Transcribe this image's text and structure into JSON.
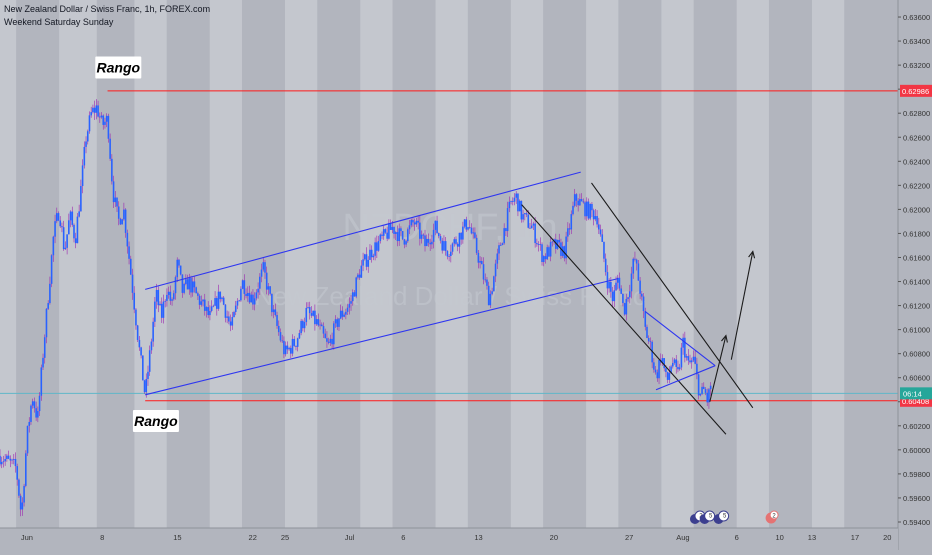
{
  "header": {
    "title": "New Zealand Dollar / Swiss Franc, 1h, FOREX.com",
    "subtitle": "Weekend Saturday Sunday"
  },
  "watermark": {
    "symbol": "NZDCHF, 1h",
    "name": "New Zealand Dollar / Swiss Franc"
  },
  "colors": {
    "background": "#b2b5be",
    "weekend_band": "#c4c7ce",
    "candles": "#2962ff",
    "wicks": "#9c27b0",
    "channel_lines": "#2e36f0",
    "down_channel": "#1b1b1b",
    "range_line": "#ff1a1a",
    "price_tag_current": "#26a69a",
    "price_tag_range": "#f23645"
  },
  "chart_data": {
    "type": "candlestick",
    "title": "New Zealand Dollar / Swiss Franc, 1h, FOREX.com",
    "y_ticks": [
      "0.63600",
      "0.63400",
      "0.63200",
      "0.63000",
      "0.62800",
      "0.62600",
      "0.62400",
      "0.62200",
      "0.62000",
      "0.61800",
      "0.61600",
      "0.61400",
      "0.61200",
      "0.61000",
      "0.60800",
      "0.60600",
      "0.60400",
      "0.60200",
      "0.60000",
      "0.59800",
      "0.59600",
      "0.59400"
    ],
    "ylim": [
      0.5935,
      0.637
    ],
    "x_ticks": [
      {
        "label": "Jun",
        "day": 1
      },
      {
        "label": "8",
        "day": 8
      },
      {
        "label": "15",
        "day": 15
      },
      {
        "label": "22",
        "day": 22
      },
      {
        "label": "25",
        "day": 25
      },
      {
        "label": "Jul",
        "day": 31
      },
      {
        "label": "6",
        "day": 36
      },
      {
        "label": "13",
        "day": 43
      },
      {
        "label": "20",
        "day": 50
      },
      {
        "label": "27",
        "day": 57
      },
      {
        "label": "Aug",
        "day": 62
      },
      {
        "label": "6",
        "day": 67
      },
      {
        "label": "10",
        "day": 71
      },
      {
        "label": "13",
        "day": 74
      },
      {
        "label": "17",
        "day": 78
      },
      {
        "label": "20",
        "day": 81
      }
    ],
    "xlim": [
      -1.5,
      82
    ],
    "price_path": [
      [
        -1.5,
        0.5995
      ],
      [
        0,
        0.5985
      ],
      [
        0.5,
        0.5945
      ],
      [
        1,
        0.601
      ],
      [
        1.5,
        0.6045
      ],
      [
        2,
        0.6025
      ],
      [
        2.5,
        0.608
      ],
      [
        3,
        0.613
      ],
      [
        3.5,
        0.618
      ],
      [
        4,
        0.62
      ],
      [
        4.5,
        0.6165
      ],
      [
        5,
        0.6195
      ],
      [
        5.5,
        0.6175
      ],
      [
        6,
        0.6215
      ],
      [
        6.5,
        0.626
      ],
      [
        7,
        0.628
      ],
      [
        7.5,
        0.6285
      ],
      [
        8,
        0.627
      ],
      [
        8.5,
        0.6275
      ],
      [
        9,
        0.6215
      ],
      [
        9.5,
        0.619
      ],
      [
        10,
        0.62
      ],
      [
        10.5,
        0.616
      ],
      [
        11,
        0.612
      ],
      [
        11.5,
        0.608
      ],
      [
        12,
        0.6045
      ],
      [
        12.5,
        0.6085
      ],
      [
        13,
        0.613
      ],
      [
        13.5,
        0.611
      ],
      [
        14,
        0.6135
      ],
      [
        14.5,
        0.612
      ],
      [
        15,
        0.6155
      ],
      [
        15.5,
        0.613
      ],
      [
        16,
        0.614
      ],
      [
        17,
        0.6125
      ],
      [
        18,
        0.611
      ],
      [
        19,
        0.613
      ],
      [
        20,
        0.61
      ],
      [
        21,
        0.614
      ],
      [
        22,
        0.6125
      ],
      [
        23,
        0.615
      ],
      [
        24,
        0.611
      ],
      [
        25,
        0.608
      ],
      [
        26,
        0.609
      ],
      [
        27,
        0.6115
      ],
      [
        28,
        0.6105
      ],
      [
        29,
        0.6085
      ],
      [
        30,
        0.611
      ],
      [
        31,
        0.612
      ],
      [
        32,
        0.615
      ],
      [
        33,
        0.6165
      ],
      [
        34,
        0.6175
      ],
      [
        35,
        0.6185
      ],
      [
        36,
        0.6175
      ],
      [
        37,
        0.619
      ],
      [
        38,
        0.617
      ],
      [
        39,
        0.6185
      ],
      [
        40,
        0.6165
      ],
      [
        41,
        0.6175
      ],
      [
        42,
        0.619
      ],
      [
        43,
        0.616
      ],
      [
        44,
        0.6125
      ],
      [
        45,
        0.617
      ],
      [
        46,
        0.6205
      ],
      [
        46.5,
        0.621
      ],
      [
        47,
        0.6195
      ],
      [
        48,
        0.6185
      ],
      [
        49,
        0.616
      ],
      [
        50,
        0.617
      ],
      [
        51,
        0.6165
      ],
      [
        52,
        0.621
      ],
      [
        53,
        0.62
      ],
      [
        54,
        0.6195
      ],
      [
        55,
        0.614
      ],
      [
        55.5,
        0.6125
      ],
      [
        56,
        0.6145
      ],
      [
        56.5,
        0.6115
      ],
      [
        57,
        0.6135
      ],
      [
        57.5,
        0.616
      ],
      [
        58,
        0.6135
      ],
      [
        58.5,
        0.61
      ],
      [
        59,
        0.6085
      ],
      [
        59.5,
        0.606
      ],
      [
        60,
        0.608
      ],
      [
        60.5,
        0.6055
      ],
      [
        61,
        0.6075
      ],
      [
        61.5,
        0.606
      ],
      [
        62,
        0.609
      ],
      [
        62.5,
        0.607
      ],
      [
        63,
        0.6075
      ],
      [
        63.3,
        0.606
      ],
      [
        63.6,
        0.6045
      ],
      [
        64,
        0.605
      ],
      [
        64.3,
        0.604
      ],
      [
        64.6,
        0.6055
      ]
    ],
    "rising_channel": {
      "upper": [
        [
          12,
          0.61335
        ],
        [
          52.5,
          0.6231
        ]
      ],
      "lower": [
        [
          12,
          0.60458
        ],
        [
          56,
          0.61425
        ]
      ]
    },
    "falling_channel": {
      "upper": [
        [
          53.5,
          0.6222
        ],
        [
          68.5,
          0.6035
        ]
      ],
      "lower": [
        [
          47,
          0.6204
        ],
        [
          66,
          0.6013
        ]
      ]
    },
    "wedge": {
      "upper": [
        [
          58.5,
          0.6115
        ],
        [
          65,
          0.607
        ]
      ],
      "lower": [
        [
          59.5,
          0.605
        ],
        [
          65,
          0.607
        ]
      ]
    },
    "projection_arrows": [
      {
        "from": [
          64.5,
          0.604
        ],
        "to": [
          66,
          0.6095
        ]
      },
      {
        "from": [
          66.5,
          0.6075
        ],
        "to": [
          68.5,
          0.6165
        ]
      }
    ],
    "range_levels": [
      {
        "value": 0.62986,
        "label": "0.62986",
        "from_day": 8.5
      },
      {
        "value": 0.60408,
        "label": "0.60408",
        "from_day": 12
      }
    ],
    "current_price": {
      "value": 0.6047,
      "label": "06:14"
    },
    "annotations": [
      {
        "text": "Rango",
        "day": 9.5,
        "price": 0.6318
      },
      {
        "text": "Rango",
        "day": 13,
        "price": 0.6024
      }
    ],
    "event_icons": [
      {
        "day": 63.4,
        "kind": "flag-cluster",
        "count": "2"
      },
      {
        "day": 64.3,
        "kind": "flag-cluster",
        "count": "5"
      },
      {
        "day": 65.6,
        "kind": "flag-cluster",
        "count": "5"
      },
      {
        "day": 70.2,
        "kind": "cross-flag",
        "count": "2"
      }
    ],
    "weekend_bands": [
      [
        -1.5,
        0
      ],
      [
        4,
        7.5
      ],
      [
        11,
        14
      ],
      [
        18,
        21
      ],
      [
        25,
        28
      ],
      [
        32,
        35
      ],
      [
        39,
        42
      ],
      [
        46,
        49
      ],
      [
        53,
        56
      ],
      [
        60,
        63
      ],
      [
        67,
        70
      ],
      [
        74,
        77
      ]
    ]
  }
}
